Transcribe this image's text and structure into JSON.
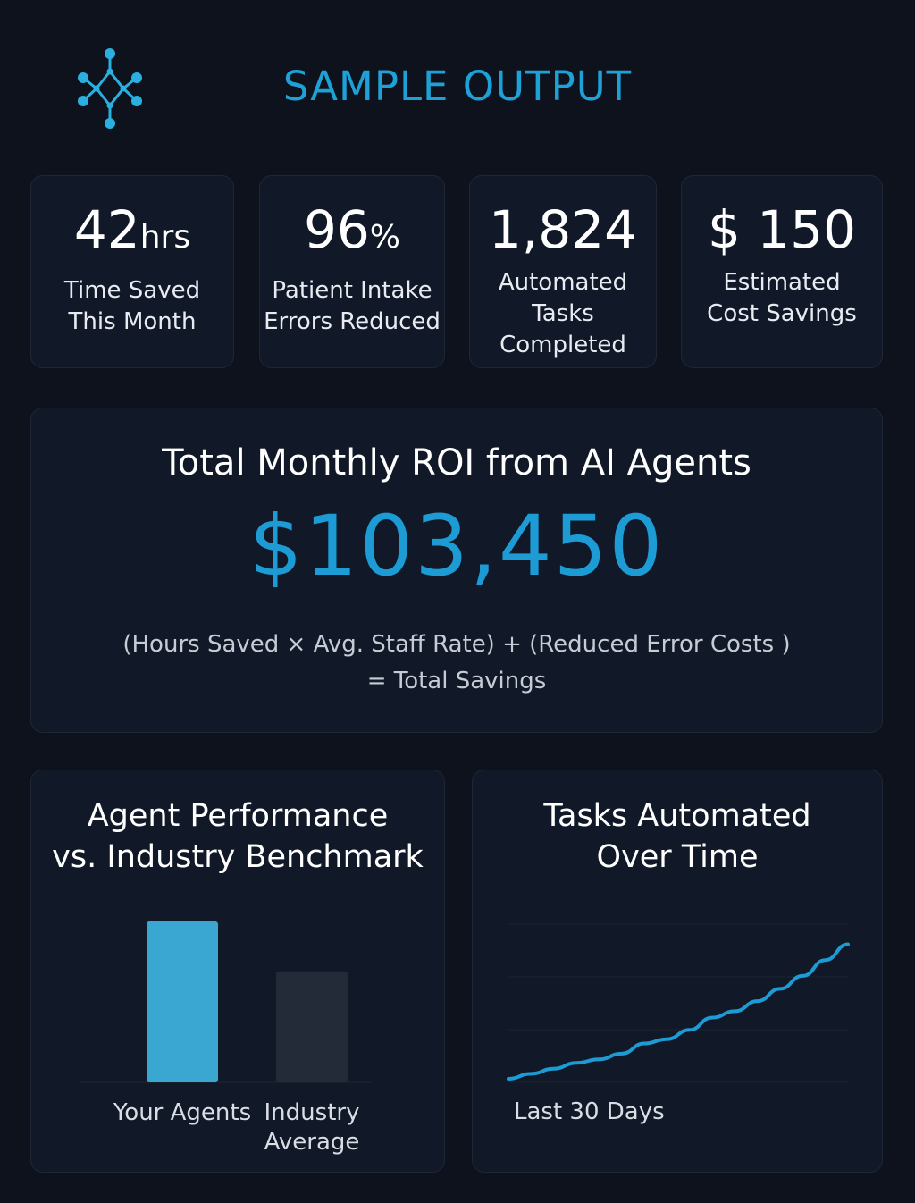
{
  "header": {
    "logo_icon": "network-node-icon",
    "title": "SAMPLE OUTPUT"
  },
  "stats": [
    {
      "value": "42",
      "unit": "hrs",
      "label_line1": "Time Saved",
      "label_line2": "This Month"
    },
    {
      "value": "96",
      "unit": "%",
      "label_line1": "Patient Intake",
      "label_line2": "Errors Reduced"
    },
    {
      "value": "1,824",
      "label_line1": "Automated",
      "label_line2": "Tasks",
      "label_line3": "Completed"
    },
    {
      "value": "$ 150",
      "label_line1": "Estimated",
      "label_line2": "Cost Savings"
    }
  ],
  "roi": {
    "heading": "Total Monthly ROI from AI Agents",
    "amount": "$103,450",
    "formula_line1": "(Hours Saved × Avg. Staff Rate) + (Reduced Error Costs )",
    "formula_line2": "= Total Savings"
  },
  "colors": {
    "accent": "#1d9bd4",
    "bar_primary": "#3aa7d3",
    "bar_secondary": "#232a38",
    "background": "#0d121d",
    "card": "#111827"
  },
  "chart_data": [
    {
      "type": "bar",
      "title_line1": "Agent Performance",
      "title_line2": "vs. Industry Benchmark",
      "categories": [
        "Your Agents",
        "Industry Average"
      ],
      "category_lines": [
        [
          "Your Agents"
        ],
        [
          "Industry",
          "Average"
        ]
      ],
      "values": [
        100,
        69
      ],
      "ylim": [
        0,
        100
      ],
      "xlabel": "",
      "ylabel": ""
    },
    {
      "type": "line",
      "title_line1": "Tasks Automated",
      "title_line2": "Over Time",
      "caption": "Last 30 Days",
      "x": [
        0,
        2,
        4,
        6,
        8,
        10,
        12,
        14,
        16,
        18,
        20,
        22,
        24,
        26,
        28,
        30
      ],
      "values": [
        5,
        12,
        19,
        27,
        32,
        40,
        54,
        60,
        73,
        90,
        99,
        113,
        130,
        148,
        170,
        192
      ],
      "ylim": [
        0,
        220
      ],
      "grid": true
    }
  ]
}
